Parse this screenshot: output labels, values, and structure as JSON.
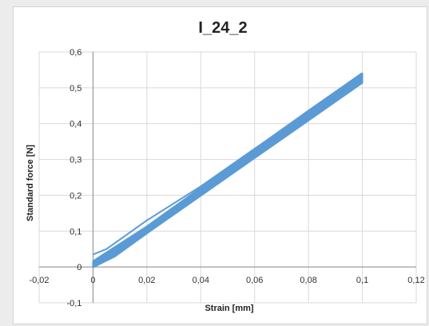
{
  "chart_data": {
    "type": "scatter",
    "title": "I_24_2",
    "xlabel": "Strain [mm]",
    "ylabel": "Standard force [N]",
    "xlim": [
      -0.02,
      0.12
    ],
    "ylim": [
      -0.1,
      0.6
    ],
    "x_ticks": [
      "-0,02",
      "0",
      "0,02",
      "0,04",
      "0,06",
      "0,08",
      "0,1",
      "0,12"
    ],
    "y_ticks": [
      "-0,1",
      "0",
      "0,1",
      "0,2",
      "0,3",
      "0,4",
      "0,5",
      "0,6"
    ],
    "x_tick_values": [
      -0.02,
      0,
      0.02,
      0.04,
      0.06,
      0.08,
      0.1,
      0.12
    ],
    "y_tick_values": [
      -0.1,
      0,
      0.1,
      0.2,
      0.3,
      0.4,
      0.5,
      0.6
    ],
    "grid": true,
    "legend": "none",
    "series_color": "#5b9bd5",
    "series": [
      {
        "values": [
          {
            "x": 0.0,
            "y": 0.0
          },
          {
            "x": 0.008,
            "y": 0.03
          },
          {
            "x": 0.02,
            "y": 0.095
          },
          {
            "x": 0.04,
            "y": 0.2
          },
          {
            "x": 0.06,
            "y": 0.305
          },
          {
            "x": 0.08,
            "y": 0.41
          },
          {
            "x": 0.1,
            "y": 0.515
          }
        ]
      },
      {
        "values": [
          {
            "x": 0.0,
            "y": 0.008
          },
          {
            "x": 0.01,
            "y": 0.05
          },
          {
            "x": 0.02,
            "y": 0.105
          },
          {
            "x": 0.04,
            "y": 0.21
          },
          {
            "x": 0.06,
            "y": 0.318
          },
          {
            "x": 0.08,
            "y": 0.425
          },
          {
            "x": 0.1,
            "y": 0.53
          }
        ]
      },
      {
        "values": [
          {
            "x": 0.0,
            "y": 0.015
          },
          {
            "x": 0.02,
            "y": 0.112
          },
          {
            "x": 0.04,
            "y": 0.22
          },
          {
            "x": 0.06,
            "y": 0.328
          },
          {
            "x": 0.08,
            "y": 0.435
          },
          {
            "x": 0.1,
            "y": 0.54
          }
        ]
      },
      {
        "values": [
          {
            "x": 0.0,
            "y": 0.035
          },
          {
            "x": 0.005,
            "y": 0.05
          },
          {
            "x": 0.02,
            "y": 0.13
          },
          {
            "x": 0.04,
            "y": 0.225
          },
          {
            "x": 0.06,
            "y": 0.33
          },
          {
            "x": 0.08,
            "y": 0.43
          },
          {
            "x": 0.1,
            "y": 0.535
          }
        ]
      }
    ]
  }
}
